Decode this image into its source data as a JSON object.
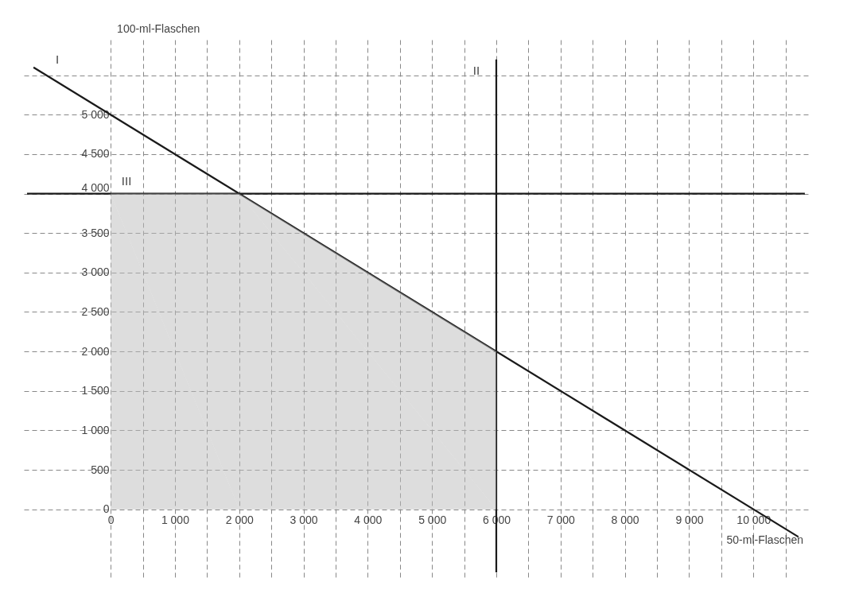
{
  "chart_data": {
    "type": "line",
    "xlabel": "50-ml-Flaschen",
    "ylabel": "100-ml-Flaschen",
    "series": [
      {
        "color": "#1a1a1a",
        "x": [
          -1200,
          10700
        ],
        "values": [
          5600,
          -350
        ]
      },
      {
        "color": "#1a1a1a",
        "x": [
          6000,
          6000
        ],
        "values": [
          5700,
          -800
        ]
      },
      {
        "color": "#1a1a1a",
        "x": [
          -1300,
          10800
        ],
        "values": [
          4000,
          4000
        ]
      },
      {
        "type": "area",
        "color": "#bbbbbb",
        "x": [
          0,
          2000,
          6000
        ],
        "values": [
          4000,
          4000,
          2000
        ]
      }
    ],
    "annotations": [
      "I",
      "II",
      "III"
    ],
    "xlim": [
      -1350,
      10900
    ],
    "ylim": [
      -900,
      5950
    ],
    "xticks": [
      0,
      {
        "value": 500,
        "label": null
      },
      {
        "value": 1000,
        "label": "1 000"
      },
      {
        "value": 1500,
        "label": null
      },
      {
        "value": 2000,
        "label": "2 000"
      },
      {
        "value": 2500,
        "label": null
      },
      {
        "value": 3000,
        "label": "3 000"
      },
      {
        "value": 3500,
        "label": null
      },
      {
        "value": 4000,
        "label": "4 000"
      },
      {
        "value": 4500,
        "label": null
      },
      {
        "value": 5000,
        "label": "5 000"
      },
      {
        "value": 5500,
        "label": null
      },
      {
        "value": 6000,
        "label": "6 000"
      },
      {
        "value": 6500,
        "label": null
      },
      {
        "value": 7000,
        "label": "7 000"
      },
      {
        "value": 7500,
        "label": null
      },
      {
        "value": 8000,
        "label": "8 000"
      },
      {
        "value": 8500,
        "label": null
      },
      {
        "value": 9000,
        "label": "9 000"
      },
      {
        "value": 9500,
        "label": null
      },
      {
        "value": 10000,
        "label": "10 000"
      },
      {
        "value": 10500,
        "label": null
      }
    ],
    "yticks": [
      0,
      500,
      {
        "value": 1000,
        "label": "1 000"
      },
      {
        "value": 1500,
        "label": "1 500"
      },
      {
        "value": 2000,
        "label": "2 000"
      },
      {
        "value": 2500,
        "label": "2 500"
      },
      {
        "value": 3000,
        "label": "3 000"
      },
      {
        "value": 3500,
        "label": "3 500"
      },
      {
        "value": 4000,
        "label": "4 000"
      },
      {
        "value": 4500,
        "label": "4 500"
      },
      {
        "value": 5000,
        "label": "5 000"
      },
      {
        "value": 5500,
        "label": null
      }
    ],
    "grid": true,
    "marker": "none",
    "line_style": "solid"
  }
}
